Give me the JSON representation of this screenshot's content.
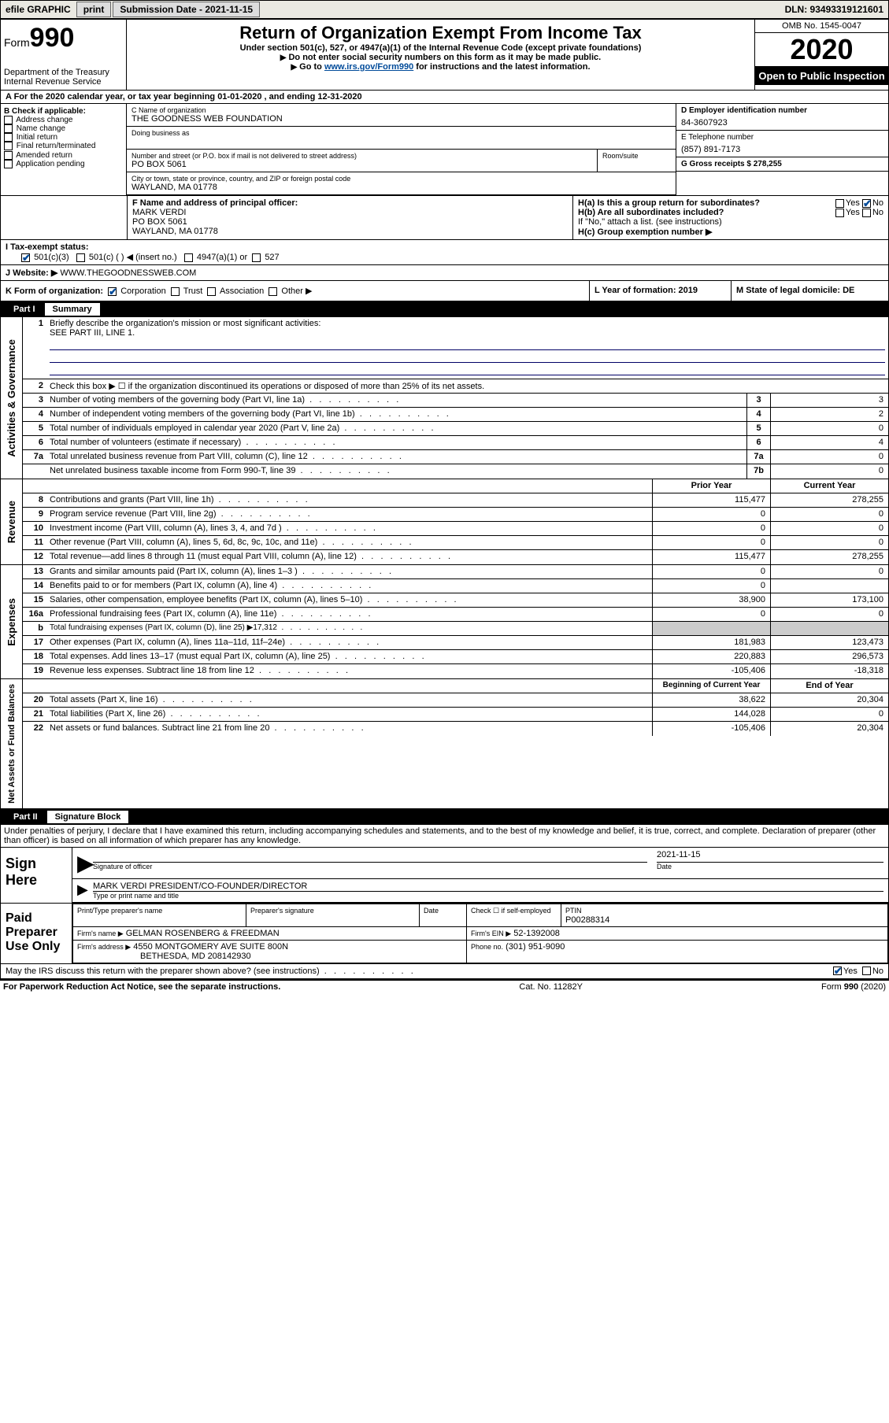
{
  "topbar": {
    "efile_label": "efile GRAPHIC",
    "print_btn": "print",
    "submission_label": "Submission Date - 2021-11-15",
    "dln": "DLN: 93493319121601"
  },
  "header": {
    "form_label": "Form",
    "form_number": "990",
    "dept": "Department of the Treasury",
    "irs": "Internal Revenue Service",
    "title": "Return of Organization Exempt From Income Tax",
    "subtitle": "Under section 501(c), 527, or 4947(a)(1) of the Internal Revenue Code (except private foundations)",
    "note1": "Do not enter social security numbers on this form as it may be made public.",
    "note2_pre": "Go to ",
    "note2_link": "www.irs.gov/Form990",
    "note2_post": " for instructions and the latest information.",
    "omb": "OMB No. 1545-0047",
    "year": "2020",
    "inspection": "Open to Public Inspection"
  },
  "row_a": "A For the 2020 calendar year, or tax year beginning 01-01-2020    , and ending 12-31-2020",
  "col_b": {
    "title": "B Check if applicable:",
    "items": [
      "Address change",
      "Name change",
      "Initial return",
      "Final return/terminated",
      "Amended return",
      "Application pending"
    ]
  },
  "col_c": {
    "name_label": "C Name of organization",
    "org_name": "THE GOODNESS WEB FOUNDATION",
    "dba_label": "Doing business as",
    "addr_label": "Number and street (or P.O. box if mail is not delivered to street address)",
    "room_label": "Room/suite",
    "addr": "PO BOX 5061",
    "city_label": "City or town, state or province, country, and ZIP or foreign postal code",
    "city": "WAYLAND, MA  01778"
  },
  "col_d": {
    "ein_label": "D Employer identification number",
    "ein": "84-3607923",
    "tel_label": "E Telephone number",
    "tel": "(857) 891-7173",
    "gross_label": "G Gross receipts $ 278,255"
  },
  "row_f": {
    "label": "F  Name and address of principal officer:",
    "name": "MARK VERDI",
    "addr1": "PO BOX 5061",
    "addr2": "WAYLAND, MA  01778"
  },
  "row_h": {
    "ha": "H(a)  Is this a group return for subordinates?",
    "hb": "H(b)  Are all subordinates included?",
    "hb_note": "If \"No,\" attach a list. (see instructions)",
    "hc": "H(c)  Group exemption number ▶"
  },
  "row_i": {
    "label": "I  Tax-exempt status:",
    "opts": [
      "501(c)(3)",
      "501(c) (  ) ◀ (insert no.)",
      "4947(a)(1) or",
      "527"
    ]
  },
  "row_j": {
    "label": "J  Website: ▶",
    "value": "WWW.THEGOODNESSWEB.COM"
  },
  "row_k": {
    "label": "K Form of organization:",
    "opts": [
      "Corporation",
      "Trust",
      "Association",
      "Other ▶"
    ],
    "l_label": "L Year of formation: 2019",
    "m_label": "M State of legal domicile: DE"
  },
  "part1": {
    "label": "Part I",
    "title": "Summary"
  },
  "summary": {
    "line1": "Briefly describe the organization's mission or most significant activities:",
    "line1_val": "SEE PART III, LINE 1.",
    "line2": "Check this box ▶ ☐  if the organization discontinued its operations or disposed of more than 25% of its net assets.",
    "rows_gov": [
      {
        "n": "3",
        "d": "Number of voting members of the governing body (Part VI, line 1a)",
        "r": "3",
        "v": "3"
      },
      {
        "n": "4",
        "d": "Number of independent voting members of the governing body (Part VI, line 1b)",
        "r": "4",
        "v": "2"
      },
      {
        "n": "5",
        "d": "Total number of individuals employed in calendar year 2020 (Part V, line 2a)",
        "r": "5",
        "v": "0"
      },
      {
        "n": "6",
        "d": "Total number of volunteers (estimate if necessary)",
        "r": "6",
        "v": "4"
      },
      {
        "n": "7a",
        "d": "Total unrelated business revenue from Part VIII, column (C), line 12",
        "r": "7a",
        "v": "0"
      },
      {
        "n": "",
        "d": "Net unrelated business taxable income from Form 990-T, line 39",
        "r": "7b",
        "v": "0"
      }
    ],
    "hdr_prior": "Prior Year",
    "hdr_current": "Current Year",
    "rows_rev": [
      {
        "n": "8",
        "d": "Contributions and grants (Part VIII, line 1h)",
        "p": "115,477",
        "c": "278,255"
      },
      {
        "n": "9",
        "d": "Program service revenue (Part VIII, line 2g)",
        "p": "0",
        "c": "0"
      },
      {
        "n": "10",
        "d": "Investment income (Part VIII, column (A), lines 3, 4, and 7d )",
        "p": "0",
        "c": "0"
      },
      {
        "n": "11",
        "d": "Other revenue (Part VIII, column (A), lines 5, 6d, 8c, 9c, 10c, and 11e)",
        "p": "0",
        "c": "0"
      },
      {
        "n": "12",
        "d": "Total revenue—add lines 8 through 11 (must equal Part VIII, column (A), line 12)",
        "p": "115,477",
        "c": "278,255"
      }
    ],
    "rows_exp": [
      {
        "n": "13",
        "d": "Grants and similar amounts paid (Part IX, column (A), lines 1–3 )",
        "p": "0",
        "c": "0"
      },
      {
        "n": "14",
        "d": "Benefits paid to or for members (Part IX, column (A), line 4)",
        "p": "0",
        "c": ""
      },
      {
        "n": "15",
        "d": "Salaries, other compensation, employee benefits (Part IX, column (A), lines 5–10)",
        "p": "38,900",
        "c": "173,100"
      },
      {
        "n": "16a",
        "d": "Professional fundraising fees (Part IX, column (A), line 11e)",
        "p": "0",
        "c": "0"
      },
      {
        "n": "b",
        "d": "Total fundraising expenses (Part IX, column (D), line 25) ▶17,312",
        "p": "grey",
        "c": "grey"
      },
      {
        "n": "17",
        "d": "Other expenses (Part IX, column (A), lines 11a–11d, 11f–24e)",
        "p": "181,983",
        "c": "123,473"
      },
      {
        "n": "18",
        "d": "Total expenses. Add lines 13–17 (must equal Part IX, column (A), line 25)",
        "p": "220,883",
        "c": "296,573"
      },
      {
        "n": "19",
        "d": "Revenue less expenses. Subtract line 18 from line 12",
        "p": "-105,406",
        "c": "-18,318"
      }
    ],
    "hdr_begin": "Beginning of Current Year",
    "hdr_end": "End of Year",
    "rows_net": [
      {
        "n": "20",
        "d": "Total assets (Part X, line 16)",
        "p": "38,622",
        "c": "20,304"
      },
      {
        "n": "21",
        "d": "Total liabilities (Part X, line 26)",
        "p": "144,028",
        "c": "0"
      },
      {
        "n": "22",
        "d": "Net assets or fund balances. Subtract line 21 from line 20",
        "p": "-105,406",
        "c": "20,304"
      }
    ]
  },
  "sidelabels": {
    "gov": "Activities & Governance",
    "rev": "Revenue",
    "exp": "Expenses",
    "net": "Net Assets or Fund Balances"
  },
  "part2": {
    "label": "Part II",
    "title": "Signature Block"
  },
  "sig": {
    "penalties": "Under penalties of perjury, I declare that I have examined this return, including accompanying schedules and statements, and to the best of my knowledge and belief, it is true, correct, and complete. Declaration of preparer (other than officer) is based on all information of which preparer has any knowledge.",
    "sign_here": "Sign Here",
    "sig_officer": "Signature of officer",
    "date": "2021-11-15",
    "date_label": "Date",
    "officer_name": "MARK VERDI PRESIDENT/CO-FOUNDER/DIRECTOR",
    "type_label": "Type or print name and title",
    "paid": "Paid Preparer Use Only",
    "prep_name_label": "Print/Type preparer's name",
    "prep_sig_label": "Preparer's signature",
    "check_self": "Check ☐ if self-employed",
    "ptin_label": "PTIN",
    "ptin": "P00288314",
    "firm_name_label": "Firm's name   ▶",
    "firm_name": "GELMAN ROSENBERG & FREEDMAN",
    "firm_ein_label": "Firm's EIN ▶",
    "firm_ein": "52-1392008",
    "firm_addr_label": "Firm's address ▶",
    "firm_addr1": "4550 MONTGOMERY AVE SUITE 800N",
    "firm_addr2": "BETHESDA, MD  208142930",
    "phone_label": "Phone no.",
    "phone": "(301) 951-9090",
    "discuss": "May the IRS discuss this return with the preparer shown above? (see instructions)"
  },
  "footer": {
    "left": "For Paperwork Reduction Act Notice, see the separate instructions.",
    "mid": "Cat. No. 11282Y",
    "right": "Form 990 (2020)"
  }
}
